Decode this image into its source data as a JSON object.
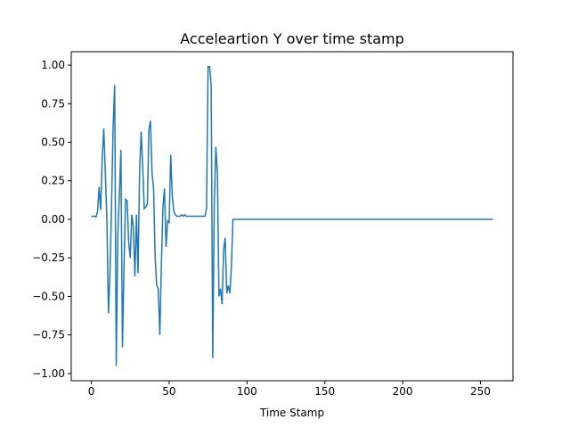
{
  "chart_data": {
    "type": "line",
    "title": "Acceleartion Y over time stamp",
    "x_label": "Time Stamp",
    "x": [
      0,
      1,
      2,
      3,
      4,
      5,
      6,
      7,
      8,
      9,
      10,
      11,
      12,
      13,
      14,
      15,
      16,
      17,
      18,
      19,
      20,
      21,
      22,
      23,
      24,
      25,
      26,
      27,
      28,
      29,
      30,
      31,
      32,
      33,
      34,
      35,
      36,
      37,
      38,
      39,
      40,
      41,
      42,
      43,
      44,
      45,
      46,
      47,
      48,
      49,
      50,
      51,
      52,
      53,
      54,
      55,
      56,
      57,
      58,
      59,
      60,
      61,
      62,
      63,
      64,
      65,
      66,
      67,
      68,
      69,
      70,
      71,
      72,
      73,
      74,
      75,
      76,
      77,
      78,
      79,
      80,
      81,
      82,
      83,
      84,
      85,
      86,
      87,
      88,
      89,
      90,
      91,
      92,
      258
    ],
    "series": [
      {
        "color": "#1f77b4",
        "values": [
          0.02,
          0.02,
          0.02,
          0.015,
          0.05,
          0.21,
          0.06,
          0.4,
          0.59,
          0.3,
          0.0,
          -0.61,
          -0.35,
          0.1,
          0.6,
          0.87,
          -0.95,
          -0.1,
          0.15,
          0.45,
          -0.83,
          -0.3,
          0.13,
          0.12,
          -0.15,
          -0.25,
          0.03,
          -0.05,
          -0.37,
          0.03,
          -0.35,
          0.3,
          0.57,
          0.35,
          0.07,
          0.08,
          0.1,
          0.58,
          0.64,
          0.3,
          0.2,
          -0.25,
          -0.43,
          -0.45,
          -0.75,
          -0.3,
          0.08,
          0.2,
          -0.18,
          -0.01,
          -0.02,
          0.42,
          0.15,
          0.05,
          0.03,
          0.02,
          0.02,
          0.02,
          0.03,
          0.02,
          0.03,
          0.02,
          0.02,
          0.02,
          0.02,
          0.02,
          0.02,
          0.02,
          0.02,
          0.02,
          0.02,
          0.02,
          0.02,
          0.02,
          0.07,
          0.99,
          0.99,
          0.87,
          -0.9,
          0.1,
          0.47,
          0.3,
          -0.5,
          -0.45,
          -0.55,
          -0.2,
          -0.12,
          -0.48,
          -0.43,
          -0.48,
          -0.3,
          0.0,
          0.0,
          0.0
        ]
      }
    ],
    "xlim": [
      -12.9,
      270.9
    ],
    "xticks": [
      0,
      50,
      100,
      150,
      200,
      250
    ],
    "ylim": [
      -1.047,
      1.087
    ],
    "yticks": [
      {
        "value": -1,
        "label": "−1.00"
      },
      {
        "value": -0.75,
        "label": "−0.75"
      },
      {
        "value": -0.5,
        "label": "−0.50"
      },
      {
        "value": -0.25,
        "label": "−0.25"
      },
      {
        "value": 0,
        "label": "0.00"
      },
      {
        "value": 0.25,
        "label": "0.25"
      },
      {
        "value": 0.5,
        "label": "0.50"
      },
      {
        "value": 0.75,
        "label": "0.75"
      },
      {
        "value": 1,
        "label": "1.00"
      }
    ]
  }
}
